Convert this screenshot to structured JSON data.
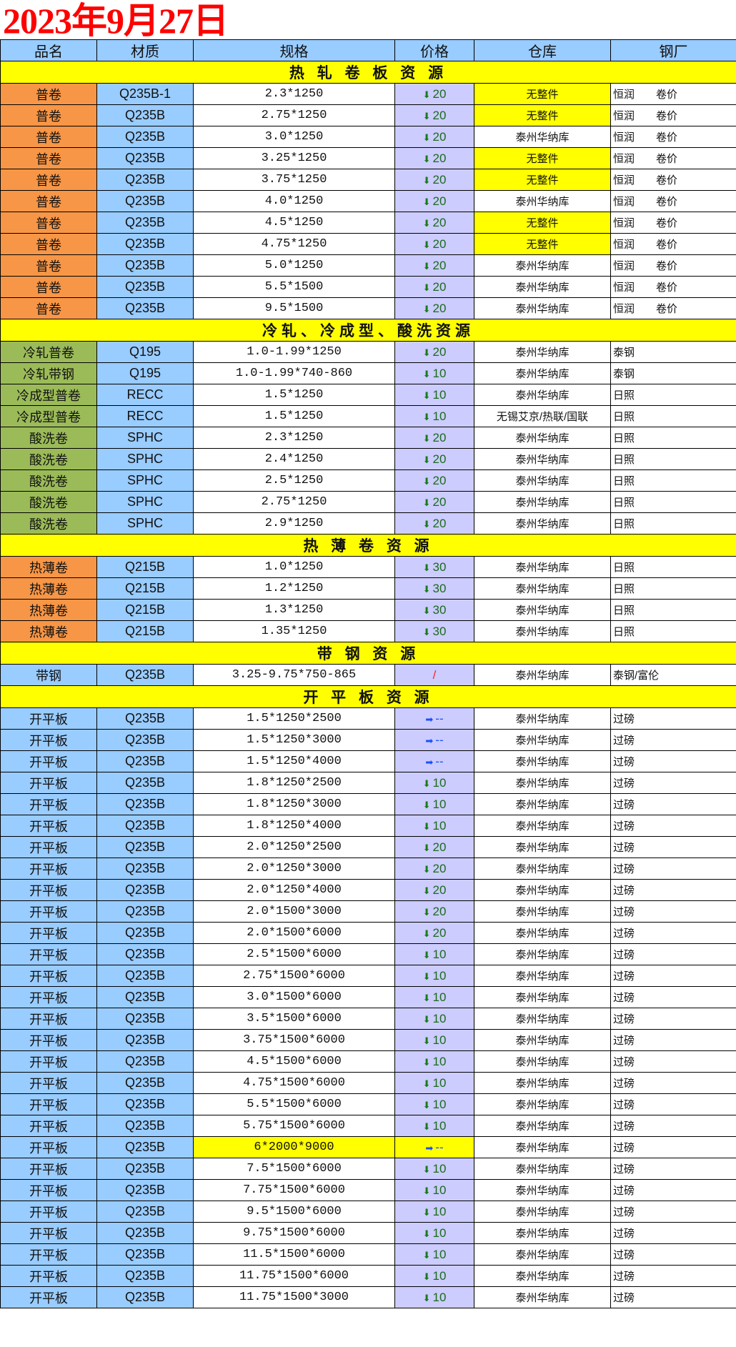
{
  "title": "2023年9月27日",
  "headers": [
    "品名",
    "材质",
    "规格",
    "价格",
    "仓库",
    "钢厂"
  ],
  "colors": {
    "hot_rolled": "#f79646",
    "cold_rolled": "#9bbb59",
    "strip": "#99ccff",
    "section": "#ffff00",
    "price": "#ccccff",
    "down": "#1a7a1a",
    "flat": "#1a4fff"
  },
  "sections": [
    {
      "title": "热 轧 卷 板 资 源",
      "rows": [
        {
          "name": "普卷",
          "color": "orange",
          "mat": "Q235B-1",
          "spec": "2.3*1250",
          "dir": "down",
          "price": "20",
          "wh": "无整件",
          "wh_hl": true,
          "mill": "恒润",
          "note": "卷价"
        },
        {
          "name": "普卷",
          "color": "orange",
          "mat": "Q235B",
          "spec": "2.75*1250",
          "dir": "down",
          "price": "20",
          "wh": "无整件",
          "wh_hl": true,
          "mill": "恒润",
          "note": "卷价"
        },
        {
          "name": "普卷",
          "color": "orange",
          "mat": "Q235B",
          "spec": "3.0*1250",
          "dir": "down",
          "price": "20",
          "wh": "泰州华纳库",
          "mill": "恒润",
          "note": "卷价"
        },
        {
          "name": "普卷",
          "color": "orange",
          "mat": "Q235B",
          "spec": "3.25*1250",
          "dir": "down",
          "price": "20",
          "wh": "无整件",
          "wh_hl": true,
          "mill": "恒润",
          "note": "卷价"
        },
        {
          "name": "普卷",
          "color": "orange",
          "mat": "Q235B",
          "spec": "3.75*1250",
          "dir": "down",
          "price": "20",
          "wh": "无整件",
          "wh_hl": true,
          "mill": "恒润",
          "note": "卷价"
        },
        {
          "name": "普卷",
          "color": "orange",
          "mat": "Q235B",
          "spec": "4.0*1250",
          "dir": "down",
          "price": "20",
          "wh": "泰州华纳库",
          "mill": "恒润",
          "note": "卷价"
        },
        {
          "name": "普卷",
          "color": "orange",
          "mat": "Q235B",
          "spec": "4.5*1250",
          "dir": "down",
          "price": "20",
          "wh": "无整件",
          "wh_hl": true,
          "mill": "恒润",
          "note": "卷价"
        },
        {
          "name": "普卷",
          "color": "orange",
          "mat": "Q235B",
          "spec": "4.75*1250",
          "dir": "down",
          "price": "20",
          "wh": "无整件",
          "wh_hl": true,
          "mill": "恒润",
          "note": "卷价"
        },
        {
          "name": "普卷",
          "color": "orange",
          "mat": "Q235B",
          "spec": "5.0*1250",
          "dir": "down",
          "price": "20",
          "wh": "泰州华纳库",
          "mill": "恒润",
          "note": "卷价"
        },
        {
          "name": "普卷",
          "color": "orange",
          "mat": "Q235B",
          "spec": "5.5*1500",
          "dir": "down",
          "price": "20",
          "wh": "泰州华纳库",
          "mill": "恒润",
          "note": "卷价"
        },
        {
          "name": "普卷",
          "color": "orange",
          "mat": "Q235B",
          "spec": "9.5*1500",
          "dir": "down",
          "price": "20",
          "wh": "泰州华纳库",
          "mill": "恒润",
          "note": "卷价"
        }
      ]
    },
    {
      "title": "冷轧、冷成型、酸洗资源",
      "rows": [
        {
          "name": "冷轧普卷",
          "color": "green",
          "mat": "Q195",
          "spec": "1.0-1.99*1250",
          "dir": "down",
          "price": "20",
          "wh": "泰州华纳库",
          "mill": "泰钢"
        },
        {
          "name": "冷轧带钢",
          "color": "green",
          "mat": "Q195",
          "spec": "1.0-1.99*740-860",
          "dir": "down",
          "price": "10",
          "wh": "泰州华纳库",
          "mill": "泰钢"
        },
        {
          "name": "冷成型普卷",
          "color": "green",
          "mat": "RECC",
          "spec": "1.5*1250",
          "dir": "down",
          "price": "10",
          "wh": "泰州华纳库",
          "mill": "日照"
        },
        {
          "name": "冷成型普卷",
          "color": "green",
          "mat": "RECC",
          "spec": "1.5*1250",
          "dir": "down",
          "price": "10",
          "wh": "无锡艾京/热联/国联",
          "mill": "日照"
        },
        {
          "name": "酸洗卷",
          "color": "green",
          "mat": "SPHC",
          "spec": "2.3*1250",
          "dir": "down",
          "price": "20",
          "wh": "泰州华纳库",
          "mill": "日照"
        },
        {
          "name": "酸洗卷",
          "color": "green",
          "mat": "SPHC",
          "spec": "2.4*1250",
          "dir": "down",
          "price": "20",
          "wh": "泰州华纳库",
          "mill": "日照"
        },
        {
          "name": "酸洗卷",
          "color": "green",
          "mat": "SPHC",
          "spec": "2.5*1250",
          "dir": "down",
          "price": "20",
          "wh": "泰州华纳库",
          "mill": "日照"
        },
        {
          "name": "酸洗卷",
          "color": "green",
          "mat": "SPHC",
          "spec": "2.75*1250",
          "dir": "down",
          "price": "20",
          "wh": "泰州华纳库",
          "mill": "日照"
        },
        {
          "name": "酸洗卷",
          "color": "green",
          "mat": "SPHC",
          "spec": "2.9*1250",
          "dir": "down",
          "price": "20",
          "wh": "泰州华纳库",
          "mill": "日照"
        }
      ]
    },
    {
      "title": "热 薄 卷 资 源",
      "rows": [
        {
          "name": "热薄卷",
          "color": "orange",
          "mat": "Q215B",
          "spec": "1.0*1250",
          "dir": "down",
          "price": "30",
          "wh": "泰州华纳库",
          "mill": "日照"
        },
        {
          "name": "热薄卷",
          "color": "orange",
          "mat": "Q215B",
          "spec": "1.2*1250",
          "dir": "down",
          "price": "30",
          "wh": "泰州华纳库",
          "mill": "日照"
        },
        {
          "name": "热薄卷",
          "color": "orange",
          "mat": "Q215B",
          "spec": "1.3*1250",
          "dir": "down",
          "price": "30",
          "wh": "泰州华纳库",
          "mill": "日照"
        },
        {
          "name": "热薄卷",
          "color": "orange",
          "mat": "Q215B",
          "spec": "1.35*1250",
          "dir": "down",
          "price": "30",
          "wh": "泰州华纳库",
          "mill": "日照"
        }
      ]
    },
    {
      "title": "带 钢 资 源",
      "rows": [
        {
          "name": "带钢",
          "color": "blue",
          "mat": "Q235B",
          "spec": "3.25-9.75*750-865",
          "dir": "none",
          "price": "/",
          "wh": "泰州华纳库",
          "mill": "泰钢/富伦"
        }
      ]
    },
    {
      "title": "开 平 板 资 源",
      "rows": [
        {
          "name": "开平板",
          "color": "blue",
          "mat": "Q235B",
          "spec": "1.5*1250*2500",
          "dir": "flat",
          "price": "--",
          "wh": "泰州华纳库",
          "mill": "过磅"
        },
        {
          "name": "开平板",
          "color": "blue",
          "mat": "Q235B",
          "spec": "1.5*1250*3000",
          "dir": "flat",
          "price": "--",
          "wh": "泰州华纳库",
          "mill": "过磅"
        },
        {
          "name": "开平板",
          "color": "blue",
          "mat": "Q235B",
          "spec": "1.5*1250*4000",
          "dir": "flat",
          "price": "--",
          "wh": "泰州华纳库",
          "mill": "过磅"
        },
        {
          "name": "开平板",
          "color": "blue",
          "mat": "Q235B",
          "spec": "1.8*1250*2500",
          "dir": "down",
          "price": "10",
          "wh": "泰州华纳库",
          "mill": "过磅"
        },
        {
          "name": "开平板",
          "color": "blue",
          "mat": "Q235B",
          "spec": "1.8*1250*3000",
          "dir": "down",
          "price": "10",
          "wh": "泰州华纳库",
          "mill": "过磅"
        },
        {
          "name": "开平板",
          "color": "blue",
          "mat": "Q235B",
          "spec": "1.8*1250*4000",
          "dir": "down",
          "price": "10",
          "wh": "泰州华纳库",
          "mill": "过磅"
        },
        {
          "name": "开平板",
          "color": "blue",
          "mat": "Q235B",
          "spec": "2.0*1250*2500",
          "dir": "down",
          "price": "20",
          "wh": "泰州华纳库",
          "mill": "过磅"
        },
        {
          "name": "开平板",
          "color": "blue",
          "mat": "Q235B",
          "spec": "2.0*1250*3000",
          "dir": "down",
          "price": "20",
          "wh": "泰州华纳库",
          "mill": "过磅"
        },
        {
          "name": "开平板",
          "color": "blue",
          "mat": "Q235B",
          "spec": "2.0*1250*4000",
          "dir": "down",
          "price": "20",
          "wh": "泰州华纳库",
          "mill": "过磅"
        },
        {
          "name": "开平板",
          "color": "blue",
          "mat": "Q235B",
          "spec": "2.0*1500*3000",
          "dir": "down",
          "price": "20",
          "wh": "泰州华纳库",
          "mill": "过磅"
        },
        {
          "name": "开平板",
          "color": "blue",
          "mat": "Q235B",
          "spec": "2.0*1500*6000",
          "dir": "down",
          "price": "20",
          "wh": "泰州华纳库",
          "mill": "过磅"
        },
        {
          "name": "开平板",
          "color": "blue",
          "mat": "Q235B",
          "spec": "2.5*1500*6000",
          "dir": "down",
          "price": "10",
          "wh": "泰州华纳库",
          "mill": "过磅"
        },
        {
          "name": "开平板",
          "color": "blue",
          "mat": "Q235B",
          "spec": "2.75*1500*6000",
          "dir": "down",
          "price": "10",
          "wh": "泰州华纳库",
          "mill": "过磅"
        },
        {
          "name": "开平板",
          "color": "blue",
          "mat": "Q235B",
          "spec": "3.0*1500*6000",
          "dir": "down",
          "price": "10",
          "wh": "泰州华纳库",
          "mill": "过磅"
        },
        {
          "name": "开平板",
          "color": "blue",
          "mat": "Q235B",
          "spec": "3.5*1500*6000",
          "dir": "down",
          "price": "10",
          "wh": "泰州华纳库",
          "mill": "过磅"
        },
        {
          "name": "开平板",
          "color": "blue",
          "mat": "Q235B",
          "spec": "3.75*1500*6000",
          "dir": "down",
          "price": "10",
          "wh": "泰州华纳库",
          "mill": "过磅"
        },
        {
          "name": "开平板",
          "color": "blue",
          "mat": "Q235B",
          "spec": "4.5*1500*6000",
          "dir": "down",
          "price": "10",
          "wh": "泰州华纳库",
          "mill": "过磅"
        },
        {
          "name": "开平板",
          "color": "blue",
          "mat": "Q235B",
          "spec": "4.75*1500*6000",
          "dir": "down",
          "price": "10",
          "wh": "泰州华纳库",
          "mill": "过磅"
        },
        {
          "name": "开平板",
          "color": "blue",
          "mat": "Q235B",
          "spec": "5.5*1500*6000",
          "dir": "down",
          "price": "10",
          "wh": "泰州华纳库",
          "mill": "过磅"
        },
        {
          "name": "开平板",
          "color": "blue",
          "mat": "Q235B",
          "spec": "5.75*1500*6000",
          "dir": "down",
          "price": "10",
          "wh": "泰州华纳库",
          "mill": "过磅"
        },
        {
          "name": "开平板",
          "color": "blue",
          "mat": "Q235B",
          "spec": "6*2000*9000",
          "spec_hl": true,
          "dir": "flat",
          "price": "--",
          "price_hl": true,
          "wh": "泰州华纳库",
          "mill": "过磅"
        },
        {
          "name": "开平板",
          "color": "blue",
          "mat": "Q235B",
          "spec": "7.5*1500*6000",
          "dir": "down",
          "price": "10",
          "wh": "泰州华纳库",
          "mill": "过磅"
        },
        {
          "name": "开平板",
          "color": "blue",
          "mat": "Q235B",
          "spec": "7.75*1500*6000",
          "dir": "down",
          "price": "10",
          "wh": "泰州华纳库",
          "mill": "过磅"
        },
        {
          "name": "开平板",
          "color": "blue",
          "mat": "Q235B",
          "spec": "9.5*1500*6000",
          "dir": "down",
          "price": "10",
          "wh": "泰州华纳库",
          "mill": "过磅"
        },
        {
          "name": "开平板",
          "color": "blue",
          "mat": "Q235B",
          "spec": "9.75*1500*6000",
          "dir": "down",
          "price": "10",
          "wh": "泰州华纳库",
          "mill": "过磅"
        },
        {
          "name": "开平板",
          "color": "blue",
          "mat": "Q235B",
          "spec": "11.5*1500*6000",
          "dir": "down",
          "price": "10",
          "wh": "泰州华纳库",
          "mill": "过磅"
        },
        {
          "name": "开平板",
          "color": "blue",
          "mat": "Q235B",
          "spec": "11.75*1500*6000",
          "dir": "down",
          "price": "10",
          "wh": "泰州华纳库",
          "mill": "过磅"
        },
        {
          "name": "开平板",
          "color": "blue",
          "mat": "Q235B",
          "spec": "11.75*1500*3000",
          "dir": "down",
          "price": "10",
          "wh": "泰州华纳库",
          "mill": "过磅"
        }
      ]
    }
  ]
}
